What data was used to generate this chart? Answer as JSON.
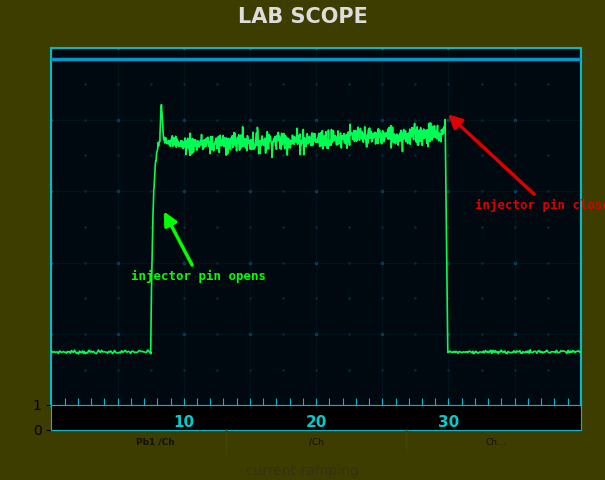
{
  "title": "LAB SCOPE",
  "subtitle": "current ramping",
  "bg_outer": "#3d3d00",
  "bg_screen": "#000810",
  "screen_border_color": "#00bbcc",
  "top_line_color": "#0099bb",
  "bottom_axis_color": "#00bbcc",
  "grid_dot_color": "#003344",
  "grid_line_color": "#001a22",
  "signal_color": "#00ff55",
  "title_color": "#dddddd",
  "subtitle_color": "#222222",
  "annotation1_text": "injector pin opens",
  "annotation1_color": "#00ff00",
  "annotation2_text": "injector pin closes",
  "annotation2_color": "#dd0000",
  "x_ticks": [
    10,
    20,
    30
  ],
  "x_tick_color": "#00cccc",
  "xlim": [
    0,
    40
  ],
  "ylim": [
    0,
    10
  ],
  "bottom_bar_color": "#ccaa00",
  "bottom_bar_text": "Pb1        /Ch              Ch...",
  "bottom_bar_text_color": "#000000"
}
